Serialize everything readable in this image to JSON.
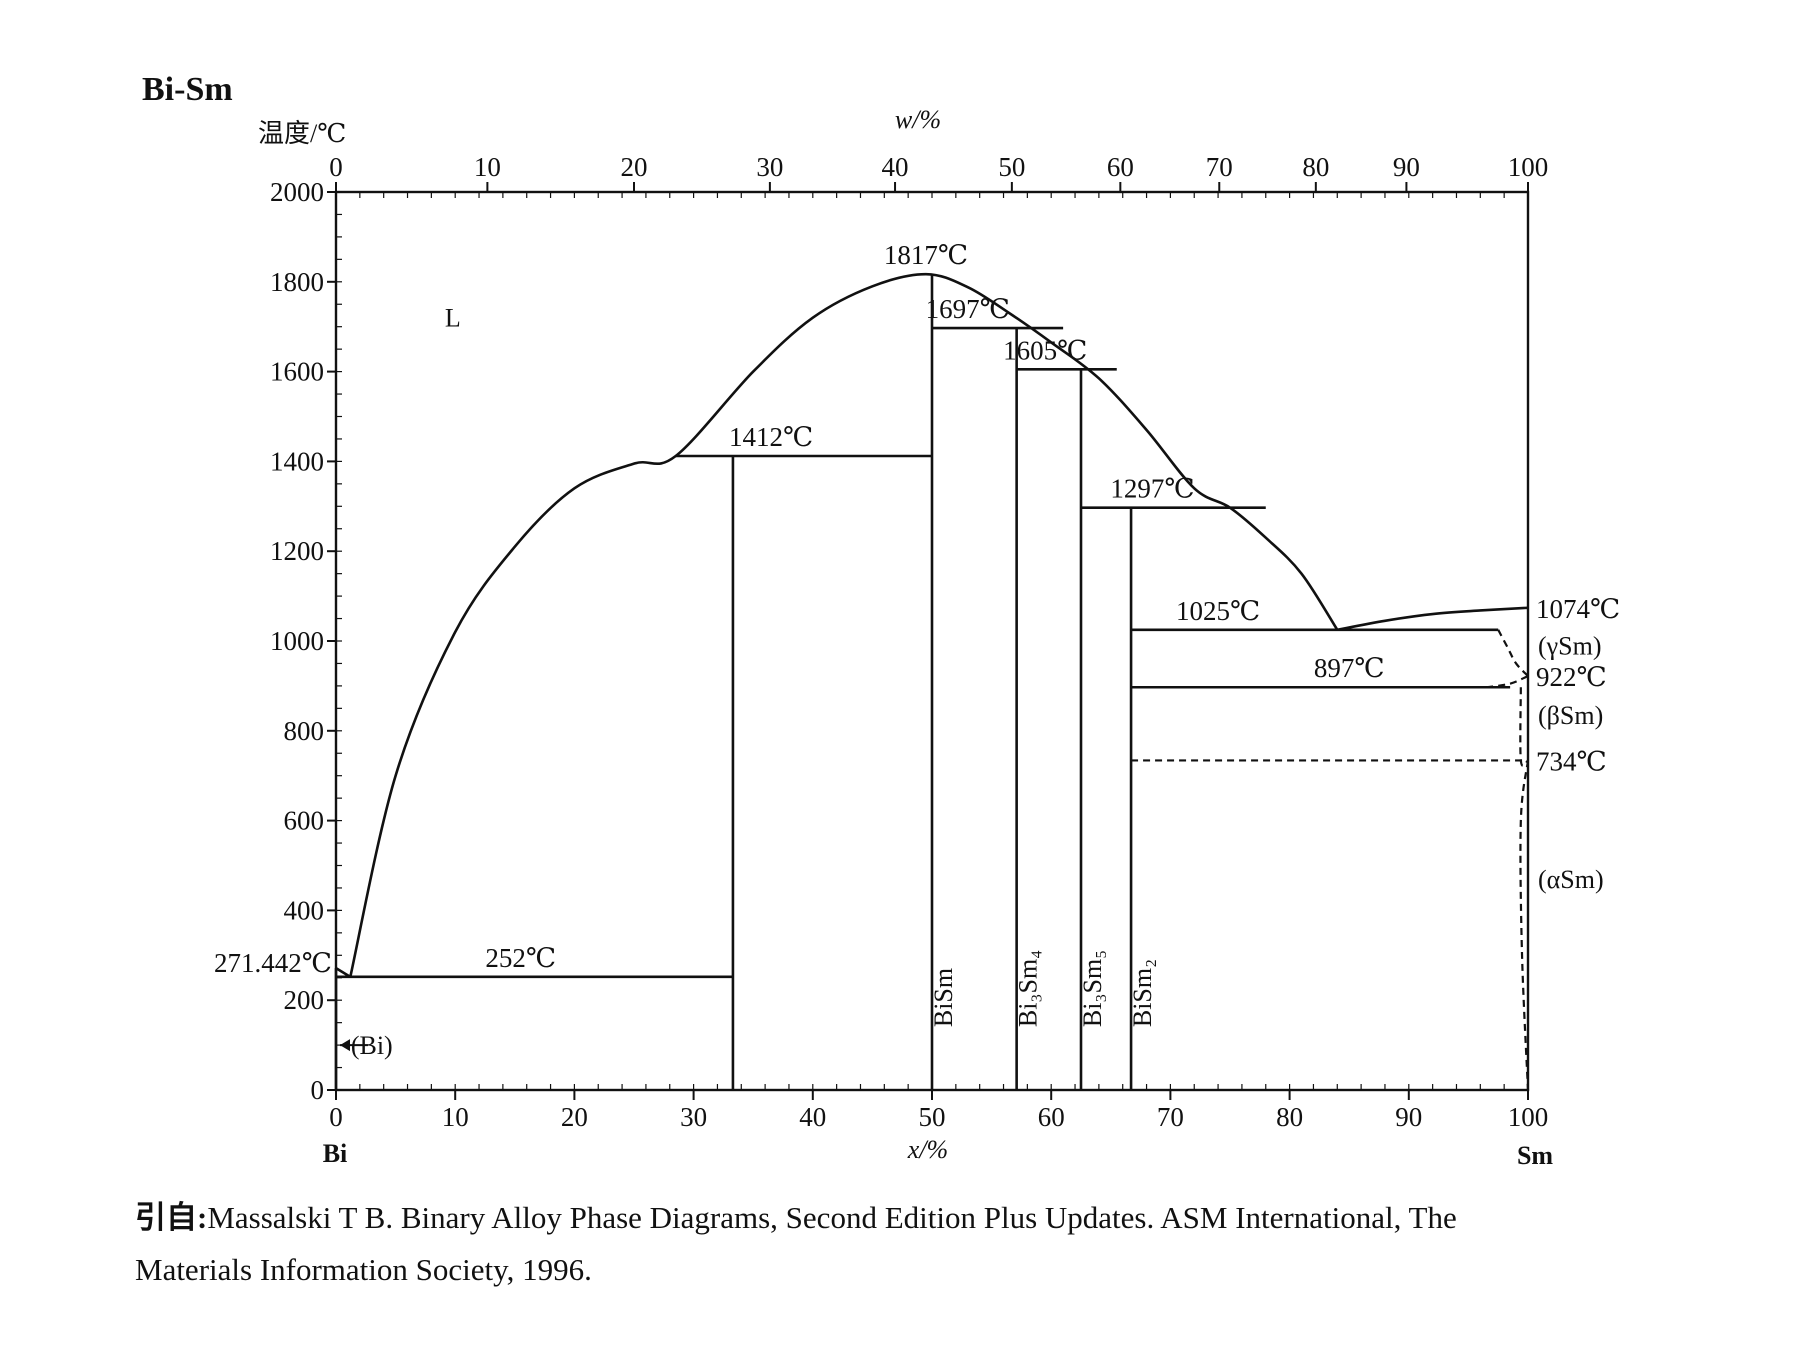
{
  "title": "Bi-Sm",
  "y_axis": {
    "label": "温度/℃",
    "ticks": [
      0,
      200,
      400,
      600,
      800,
      1000,
      1200,
      1400,
      1600,
      1800,
      2000
    ],
    "range": [
      0,
      2000
    ]
  },
  "x_axis_bottom": {
    "label": "x/%",
    "ticks": [
      0,
      10,
      20,
      30,
      40,
      50,
      60,
      70,
      80,
      90,
      100
    ],
    "range": [
      0,
      100
    ],
    "left_component": "Bi",
    "right_component": "Sm"
  },
  "x_axis_top": {
    "label": "w/%",
    "ticks": [
      0,
      10,
      20,
      30,
      40,
      50,
      60,
      70,
      80,
      90,
      100
    ],
    "at_mole_percent": [
      0,
      12.7,
      25.0,
      36.4,
      46.9,
      56.7,
      65.8,
      74.1,
      82.2,
      89.8,
      100
    ]
  },
  "temperature_labels": [
    {
      "text": "1817℃",
      "x": 49.5,
      "T": 1817
    },
    {
      "text": "1697℃",
      "x": 53.0,
      "T": 1697
    },
    {
      "text": "1605℃",
      "x": 59.5,
      "T": 1605
    },
    {
      "text": "1412℃",
      "x": 36.5,
      "T": 1412
    },
    {
      "text": "1297℃",
      "x": 68.5,
      "T": 1297
    },
    {
      "text": "1025℃",
      "x": 74.0,
      "T": 1025
    },
    {
      "text": "897℃",
      "x": 85.0,
      "T": 897
    },
    {
      "text": "252℃",
      "x": 15.5,
      "T": 252
    },
    {
      "text": "271.442℃",
      "side": "left",
      "T": 271.442
    },
    {
      "text": "1074℃",
      "side": "right",
      "T": 1074
    },
    {
      "text": "922℃",
      "side": "right",
      "T": 922
    },
    {
      "text": "734℃",
      "side": "right",
      "T": 734
    }
  ],
  "phase_regions": [
    {
      "text": "L",
      "x": 9.8,
      "T": 1720
    },
    {
      "text": "(Bi)",
      "x": 3.0,
      "T": 100
    },
    {
      "text": "(γSm)",
      "side": "right",
      "T": 990
    },
    {
      "text": "(βSm)",
      "side": "right",
      "T": 835
    },
    {
      "text": "(αSm)",
      "side": "right",
      "T": 470
    }
  ],
  "compounds": [
    {
      "name": "BiSm",
      "x": 50.0,
      "label": "BiSm"
    },
    {
      "name": "Bi3Sm4",
      "x": 57.1,
      "label": "Bi₃Sm₄"
    },
    {
      "name": "Bi3Sm5",
      "x": 62.5,
      "label": "Bi₃Sm₅"
    },
    {
      "name": "BiSm2",
      "x": 66.7,
      "label": "BiSm₂"
    }
  ],
  "phase_lines": {
    "liquidus": [
      [
        1.2,
        252
      ],
      [
        5,
        700
      ],
      [
        10,
        1020
      ],
      [
        15,
        1210
      ],
      [
        20,
        1340
      ],
      [
        25,
        1395
      ],
      [
        28.5,
        1412
      ],
      [
        35,
        1600
      ],
      [
        40,
        1720
      ],
      [
        45,
        1790
      ],
      [
        49.5,
        1817
      ],
      [
        53,
        1788
      ],
      [
        56.5,
        1730
      ],
      [
        60,
        1665
      ],
      [
        64,
        1585
      ],
      [
        68,
        1470
      ],
      [
        72,
        1340
      ],
      [
        75,
        1297
      ],
      [
        78,
        1230
      ],
      [
        81,
        1150
      ],
      [
        84,
        1025
      ]
    ],
    "sm_liquidus": [
      [
        84,
        1025
      ],
      [
        88,
        1045
      ],
      [
        92,
        1060
      ],
      [
        96,
        1068
      ],
      [
        100,
        1074
      ]
    ],
    "solid_lines": [
      [
        [
          0,
          271.442
        ],
        [
          1.2,
          252
        ]
      ],
      [
        [
          0,
          252
        ],
        [
          33.3,
          252
        ]
      ],
      [
        [
          28.5,
          1412
        ],
        [
          50,
          1412
        ]
      ],
      [
        [
          50,
          1697
        ],
        [
          61,
          1697
        ]
      ],
      [
        [
          57.1,
          1605
        ],
        [
          65.5,
          1605
        ]
      ],
      [
        [
          62.5,
          1297
        ],
        [
          78,
          1297
        ]
      ],
      [
        [
          66.7,
          1025
        ],
        [
          97.5,
          1025
        ]
      ],
      [
        [
          66.7,
          897
        ],
        [
          98.5,
          897
        ]
      ],
      [
        [
          33.3,
          0
        ],
        [
          33.3,
          1412
        ]
      ],
      [
        [
          50,
          0
        ],
        [
          50,
          1817
        ]
      ],
      [
        [
          57.1,
          0
        ],
        [
          57.1,
          1697
        ]
      ],
      [
        [
          62.5,
          0
        ],
        [
          62.5,
          1605
        ]
      ],
      [
        [
          66.7,
          0
        ],
        [
          66.7,
          1297
        ]
      ],
      [
        [
          0,
          0
        ],
        [
          0,
          271.442
        ]
      ]
    ],
    "dashed_lines": [
      [
        [
          66.7,
          734
        ],
        [
          100,
          734
        ]
      ],
      [
        [
          97.5,
          1025
        ],
        [
          98.3,
          985
        ],
        [
          99,
          950
        ],
        [
          100,
          922
        ]
      ],
      [
        [
          96.5,
          897
        ],
        [
          98.5,
          905
        ],
        [
          100,
          922
        ]
      ],
      [
        [
          99.4,
          897
        ],
        [
          99.4,
          734
        ],
        [
          100,
          734
        ]
      ],
      [
        [
          100,
          734
        ],
        [
          99.4,
          600
        ],
        [
          99.5,
          300
        ],
        [
          100,
          0
        ]
      ]
    ]
  },
  "citation": {
    "prefix": "引自:",
    "line1": "Massalski T B. Binary Alloy Phase Diagrams, Second Edition Plus Updates. ASM International, The",
    "line2": "Materials Information Society, 1996."
  }
}
